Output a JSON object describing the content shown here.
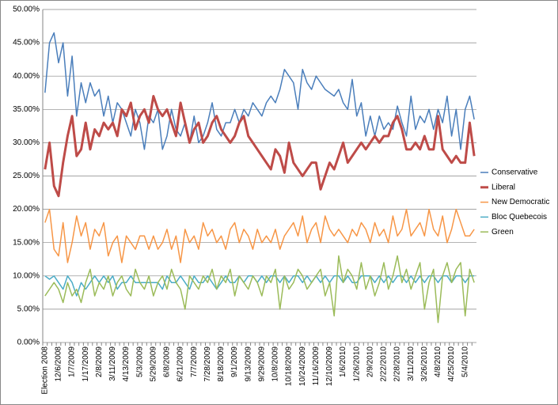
{
  "chart_data": {
    "type": "line",
    "categories": [
      "Election 2008",
      null,
      null,
      "12/6/2008",
      null,
      null,
      "1/7/2009",
      null,
      null,
      "1/17/2009",
      null,
      null,
      "2/8/2009",
      null,
      null,
      "3/11/2009",
      null,
      null,
      "4/13/2009",
      null,
      null,
      "5/3/2009",
      null,
      null,
      "5/29/2009",
      null,
      null,
      "6/8/2009",
      null,
      null,
      "6/21/2009",
      null,
      null,
      "7/7/2009",
      null,
      null,
      "7/28/2009",
      null,
      null,
      "8/18/2009",
      null,
      null,
      "9/1/2009",
      null,
      null,
      "9/13/2009",
      null,
      null,
      "9/29/2009",
      null,
      null,
      "10/8/2009",
      null,
      null,
      "10/18/2009",
      null,
      null,
      "10/24/2009",
      null,
      null,
      "11/16/2009",
      null,
      null,
      "12/10/2009",
      null,
      null,
      "1/6/2010",
      null,
      null,
      "1/26/2010",
      null,
      null,
      "2/9/2010",
      null,
      null,
      "2/22/2010",
      null,
      null,
      "2/28/2010",
      null,
      null,
      "3/11/2010",
      null,
      null,
      "3/26/2010",
      null,
      null,
      "4/8/2010",
      null,
      null,
      "4/25/2010",
      null,
      null,
      "5/4/2010",
      null,
      null
    ],
    "series": [
      {
        "name": "Conservative",
        "color": "#4a7ebb",
        "line_width": 1.5,
        "values": [
          37.5,
          45,
          46.5,
          42,
          45,
          37,
          43,
          34,
          39,
          36,
          39,
          37,
          38,
          34,
          37,
          33,
          36,
          35,
          33,
          31,
          35,
          33,
          29,
          34,
          33,
          35,
          29,
          31,
          35,
          32,
          31,
          33,
          30,
          34,
          30,
          31,
          33,
          36,
          32,
          31,
          33,
          33,
          35,
          33,
          35,
          34,
          36,
          35,
          34,
          36,
          37,
          36,
          38,
          41,
          40,
          39,
          35,
          41,
          39,
          38,
          40,
          39,
          38,
          37.5,
          37,
          38,
          36,
          35,
          39.5,
          34,
          36,
          31,
          34,
          31,
          34,
          32,
          33,
          32,
          35.5,
          33,
          31,
          37,
          32,
          34,
          33,
          35,
          32,
          35,
          33,
          37,
          31,
          35,
          29,
          35,
          37,
          33.5
        ]
      },
      {
        "name": "Liberal",
        "color": "#be4b48",
        "line_width": 3,
        "values": [
          26,
          30,
          23.5,
          22,
          27,
          31,
          34,
          28,
          29,
          33,
          29,
          32,
          31,
          33,
          32,
          33,
          31,
          35,
          34,
          36,
          32,
          34,
          35,
          33,
          37,
          35,
          34,
          35,
          33,
          31,
          36,
          33,
          30,
          32,
          33,
          30,
          31,
          33,
          34,
          32,
          31,
          30,
          31,
          33,
          34,
          31,
          30,
          29,
          28,
          27,
          26,
          29,
          28,
          25.5,
          30,
          27,
          26,
          25,
          26,
          27,
          27,
          23,
          25,
          27,
          26,
          28,
          30,
          27,
          28,
          29,
          30,
          29,
          30,
          31,
          30,
          31,
          31,
          33,
          34,
          32,
          29,
          29,
          30,
          29,
          31,
          29,
          29,
          34,
          29,
          28,
          27,
          28,
          27,
          27,
          33,
          28
        ]
      },
      {
        "name": "New Democratic",
        "color": "#f79646",
        "line_width": 1.5,
        "values": [
          18,
          20,
          14,
          13,
          18,
          12,
          15,
          19,
          16,
          18,
          14,
          17,
          16,
          18,
          13,
          15,
          16,
          12,
          16,
          15,
          14,
          16,
          16,
          14,
          16,
          14,
          15,
          17,
          14,
          16,
          12,
          17,
          15,
          16,
          14,
          18,
          16,
          17,
          15,
          16,
          14,
          17,
          18,
          15,
          17,
          16,
          14,
          17,
          15,
          16,
          15,
          17,
          14,
          16,
          17,
          18,
          16,
          19,
          15,
          17,
          18,
          15,
          19,
          17,
          16,
          17,
          16,
          15,
          17,
          16,
          18,
          17,
          15,
          18,
          16,
          17,
          15,
          19,
          16,
          17,
          20,
          16,
          17,
          18,
          16,
          20,
          17,
          16,
          19,
          15,
          17,
          20,
          18,
          16,
          16,
          17
        ]
      },
      {
        "name": "Bloc Quebecois",
        "color": "#4bacc6",
        "line_width": 1.5,
        "values": [
          10,
          9.5,
          10,
          9,
          8,
          10,
          9,
          7,
          9,
          8,
          9,
          10,
          9,
          10,
          9,
          10,
          8,
          9,
          9,
          10,
          9,
          9,
          9,
          9,
          9,
          9,
          8,
          10,
          9,
          9,
          10,
          9,
          8,
          10,
          9,
          9,
          10,
          9,
          8,
          9,
          10,
          9,
          9,
          10,
          9,
          10,
          10,
          9,
          10,
          9,
          10,
          10,
          9,
          10,
          9,
          10,
          10,
          9,
          10,
          9,
          10,
          9,
          10,
          9,
          10,
          10,
          9,
          10,
          9,
          9,
          10,
          10,
          10,
          9,
          10,
          9,
          10,
          9,
          10,
          10,
          9,
          10,
          9,
          10,
          9,
          10,
          10,
          9,
          10,
          10,
          9,
          10,
          10,
          9,
          10,
          10
        ]
      },
      {
        "name": "Green",
        "color": "#9bbb59",
        "line_width": 1.5,
        "values": [
          7,
          8,
          9,
          8,
          6,
          9,
          7,
          8,
          6,
          9,
          11,
          7,
          9,
          8,
          10,
          7,
          9,
          10,
          8,
          7,
          11,
          9,
          8,
          10,
          7,
          9,
          10,
          8,
          11,
          9,
          8,
          5,
          10,
          9,
          8,
          10,
          9,
          11,
          8,
          10,
          9,
          11,
          7,
          10,
          9,
          8,
          10,
          9,
          7,
          10,
          9,
          11,
          5,
          10,
          8,
          9,
          11,
          10,
          8,
          9,
          10,
          11,
          7,
          9,
          4,
          13,
          9,
          11,
          10,
          8,
          12,
          8,
          10,
          7,
          9,
          12,
          8,
          10,
          13,
          9,
          11,
          8,
          10,
          12,
          5,
          9,
          11,
          3,
          10,
          12,
          9,
          11,
          12,
          4,
          11,
          9
        ]
      }
    ],
    "ylim": [
      0,
      50
    ],
    "yticks": [
      {
        "value": 0,
        "label": "0.00%"
      },
      {
        "value": 5,
        "label": "5.00%"
      },
      {
        "value": 10,
        "label": "10.00%"
      },
      {
        "value": 15,
        "label": "15.00%"
      },
      {
        "value": 20,
        "label": "20.00%"
      },
      {
        "value": 25,
        "label": "25.00%"
      },
      {
        "value": 30,
        "label": "30.00%"
      },
      {
        "value": 35,
        "label": "35.00%"
      },
      {
        "value": 40,
        "label": "40.00%"
      },
      {
        "value": 45,
        "label": "45.00%"
      },
      {
        "value": 50,
        "label": "50.00%"
      }
    ],
    "grid": true,
    "legend": "right"
  }
}
